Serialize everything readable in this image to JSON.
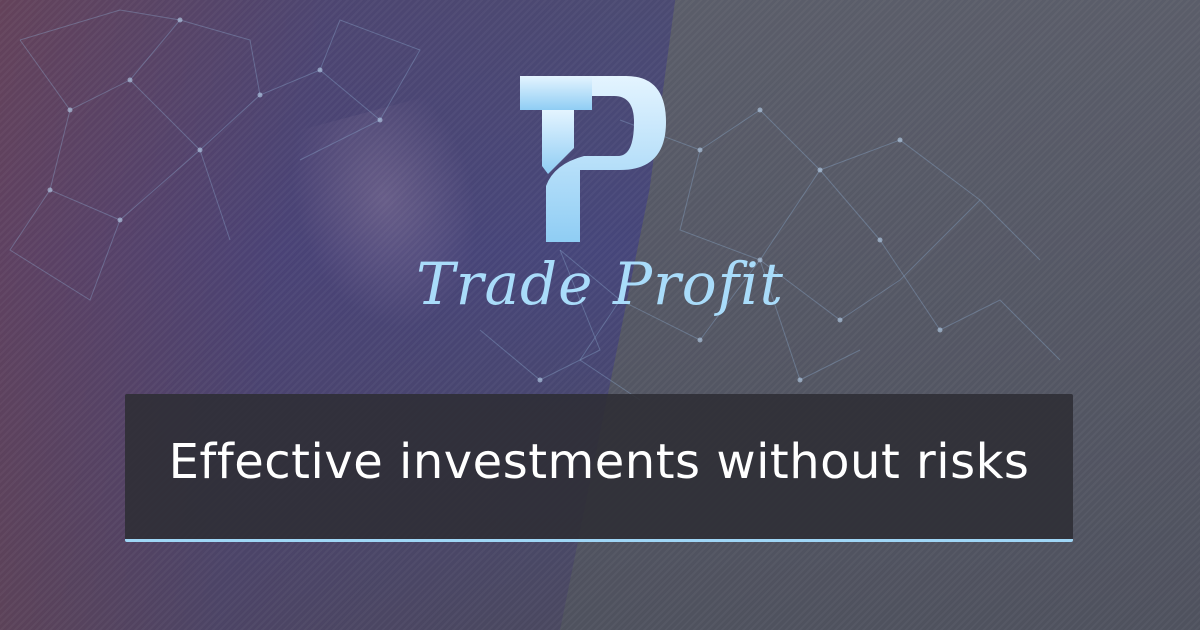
{
  "brand": {
    "monogram": "TP",
    "name": "Trade Profit"
  },
  "banner": {
    "tagline": "Effective investments without risks"
  },
  "colors": {
    "accent": "#9fd6f6",
    "brand_text": "#a9dcfa",
    "banner_bg": "#2d2e34",
    "tagline": "#ffffff"
  },
  "icons": [
    "tp-logo-icon",
    "network-lines-decoration"
  ]
}
